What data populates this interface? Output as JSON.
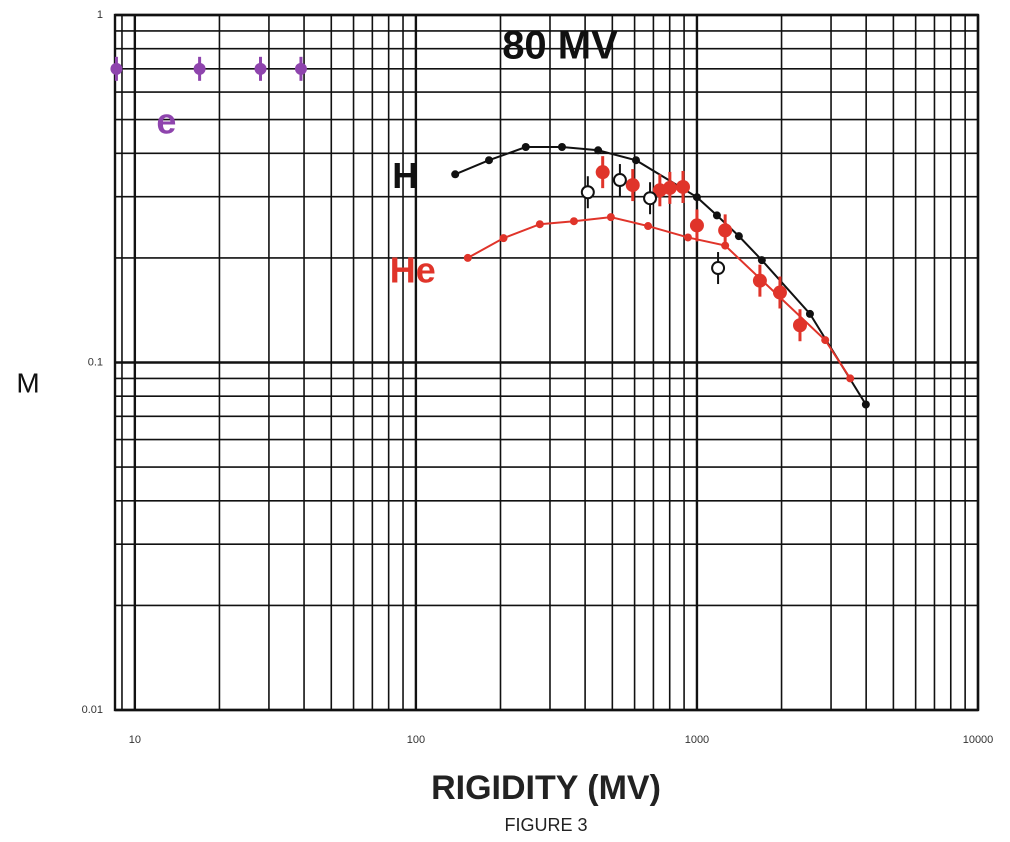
{
  "chart_data": {
    "type": "line",
    "title": "80 MV",
    "x_label": "RIGIDITY (MV)",
    "y_label": "M",
    "caption": "FIGURE 3",
    "log_x": true,
    "log_y": true,
    "grid": true,
    "xlim": [
      8.5,
      10000
    ],
    "ylim": [
      0.01,
      1
    ],
    "xticks": [
      10,
      100,
      1000,
      10000
    ],
    "yticks": [
      0.01,
      0.1,
      1
    ],
    "series": [
      {
        "name": "e",
        "color": "#8e44ad",
        "marker": "error-dot",
        "connect": false,
        "x": [
          8.6,
          17,
          28,
          39
        ],
        "values": [
          0.7,
          0.7,
          0.7,
          0.7
        ]
      },
      {
        "name": "H",
        "color": "#111111",
        "marker": "dot",
        "connect": true,
        "x": [
          138,
          182,
          246,
          331,
          445,
          607,
          1000,
          1178,
          1410,
          1702,
          2524,
          3990
        ],
        "values": [
          0.348,
          0.382,
          0.417,
          0.417,
          0.408,
          0.382,
          0.299,
          0.265,
          0.231,
          0.197,
          0.138,
          0.0757
        ]
      },
      {
        "name": "He",
        "color": "#e0342a",
        "marker": "dot",
        "connect": true,
        "x": [
          153,
          205,
          276,
          365,
          494,
          670,
          929,
          1260,
          2860,
          3510
        ],
        "values": [
          0.2,
          0.228,
          0.25,
          0.255,
          0.262,
          0.247,
          0.229,
          0.217,
          0.116,
          0.09
        ]
      },
      {
        "color": "#e0342a",
        "marker": "big-dot",
        "connect": false,
        "x": [
          462,
          591,
          738,
          801,
          892,
          1000,
          1260,
          1675,
          1974,
          2326
        ],
        "values": [
          0.353,
          0.324,
          0.313,
          0.318,
          0.32,
          0.248,
          0.24,
          0.172,
          0.159,
          0.128
        ]
      },
      {
        "color": "#111111",
        "marker": "open",
        "connect": false,
        "x": [
          409,
          532,
          681,
          1189
        ],
        "values": [
          0.309,
          0.335,
          0.297,
          0.187
        ]
      }
    ]
  }
}
